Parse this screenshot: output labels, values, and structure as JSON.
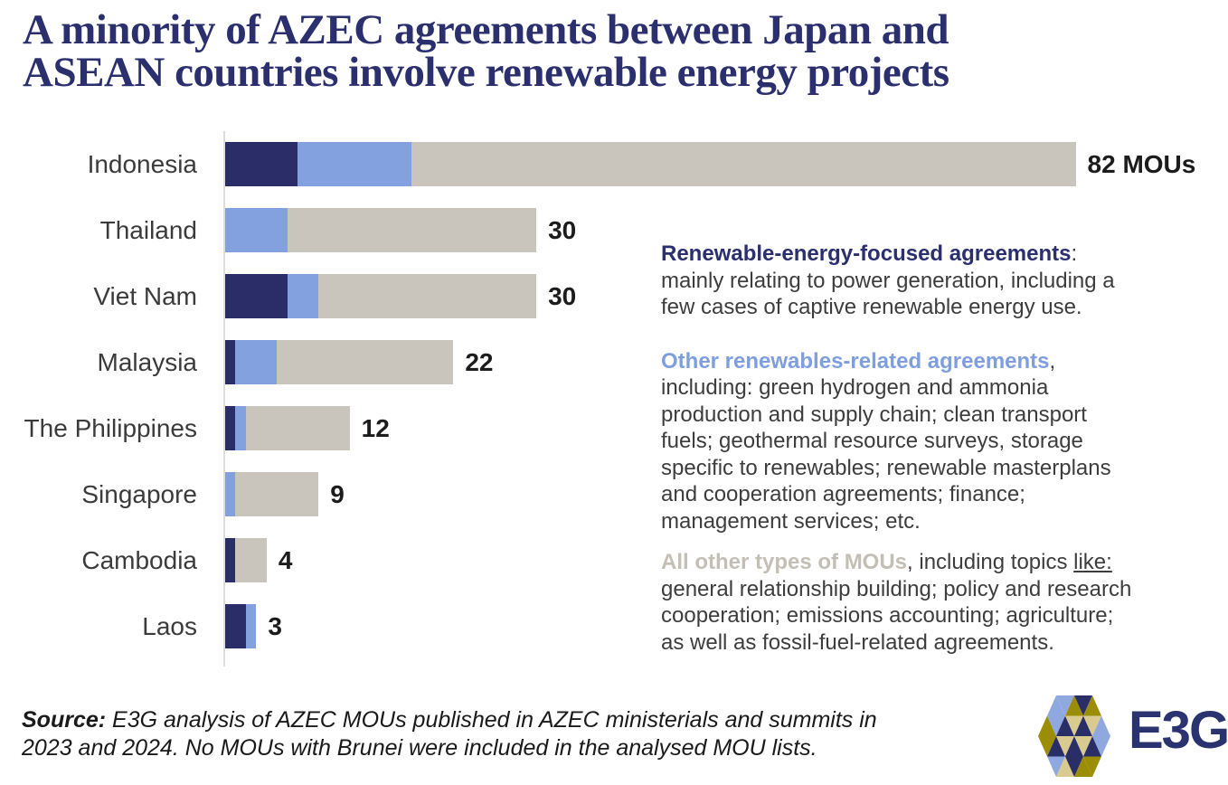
{
  "title": {
    "line1": "A minority of AZEC agreements between Japan and",
    "line2": "ASEAN countries involve renewable energy projects"
  },
  "chart_data": {
    "type": "bar",
    "orientation": "horizontal",
    "stacked": true,
    "unit": "MOUs",
    "grid": false,
    "xlim": [
      0,
      95
    ],
    "categories": [
      "Indonesia",
      "Thailand",
      "Viet Nam",
      "Malaysia",
      "The Philippines",
      "Singapore",
      "Cambodia",
      "Laos"
    ],
    "series": [
      {
        "name": "Renewable-energy-focused agreements",
        "color": "#2a2d68",
        "values": [
          7,
          0,
          6,
          1,
          1,
          0,
          1,
          2
        ]
      },
      {
        "name": "Other renewables-related agreements",
        "color": "#83a1df",
        "values": [
          11,
          6,
          3,
          4,
          1,
          1,
          0,
          1
        ]
      },
      {
        "name": "All other types of MOUs",
        "color": "#c9c5bc",
        "values": [
          64,
          24,
          21,
          17,
          10,
          8,
          3,
          0
        ]
      }
    ],
    "totals": [
      82,
      30,
      30,
      22,
      12,
      9,
      4,
      3
    ],
    "total_labels": [
      "82 MOUs",
      "30",
      "30",
      "22",
      "12",
      "9",
      "4",
      "3"
    ]
  },
  "legend": {
    "blocks": [
      {
        "margin": "mb30",
        "lines": [
          [
            {
              "t": "Renewable-energy-focused agreements",
              "lead": true,
              "color": "#2b2f6e"
            },
            {
              "t": ":"
            }
          ],
          [
            {
              "t": "mainly relating to power generation, including a"
            }
          ],
          [
            {
              "t": "few cases of captive renewable energy use."
            }
          ]
        ]
      },
      {
        "margin": "mb16",
        "lines": [
          [
            {
              "t": "Other renewables-related agreements",
              "lead": true,
              "color": "#7f9edd"
            },
            {
              "t": ","
            }
          ],
          [
            {
              "t": "including: green hydrogen and ammonia"
            }
          ],
          [
            {
              "t": "production and supply chain; clean transport"
            }
          ],
          [
            {
              "t": "fuels; geothermal resource surveys, storage"
            }
          ],
          [
            {
              "t": "specific to renewables; renewable masterplans"
            }
          ],
          [
            {
              "t": "and cooperation agreements; finance;"
            }
          ],
          [
            {
              "t": "management services; etc."
            }
          ]
        ]
      },
      {
        "margin": "",
        "lines": [
          [
            {
              "t": "All other types of MOUs",
              "lead": true,
              "color": "#c4bfb4"
            },
            {
              "t": ", including topics "
            },
            {
              "t": "like:",
              "underline": true
            }
          ],
          [
            {
              "t": "general relationship building; policy and research"
            }
          ],
          [
            {
              "t": "cooperation; emissions accounting; agriculture;"
            }
          ],
          [
            {
              "t": "as well as fossil-fuel-related agreements."
            }
          ]
        ]
      }
    ]
  },
  "source": {
    "lines": [
      [
        {
          "t": "Source:",
          "bold": true
        },
        {
          "t": " E3G analysis of AZEC MOUs published in AZEC ministerials and summits in"
        }
      ],
      [
        {
          "t": "2023 and 2024. No MOUs with Brunei were included in the analysed MOU lists."
        }
      ]
    ]
  },
  "logo": {
    "wordmark": "E3G",
    "colors": {
      "navy": "#2a2e67",
      "olive": "#9c8d07",
      "lightblue": "#8fa9e0",
      "beige": "#d9ca90"
    },
    "mosaic": [
      "lightblue",
      "lightblue",
      "olive",
      "navy",
      "olive",
      "olive",
      "lightblue",
      "navy",
      "beige",
      "navy",
      "beige",
      "lightblue",
      "olive",
      "navy",
      "beige",
      "navy",
      "beige",
      "navy",
      "lightblue",
      "lightblue",
      "beige",
      "navy",
      "olive",
      "olive"
    ]
  }
}
